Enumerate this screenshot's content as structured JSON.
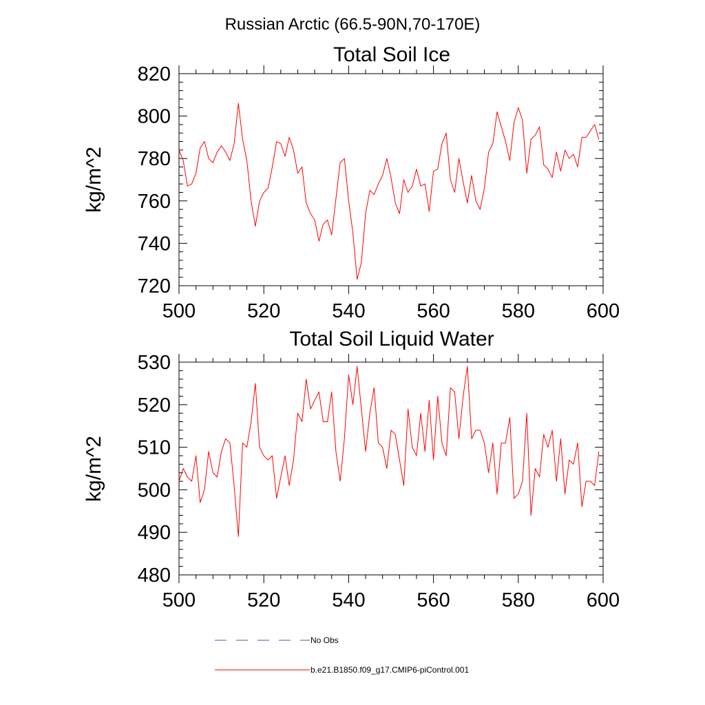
{
  "figure_title": "Russian Arctic (66.5-90N,70-170E)",
  "colors": {
    "model": "#ff0000",
    "obs": "#4a5a9a",
    "axis": "#000000"
  },
  "legend": {
    "entries": [
      {
        "label": "No Obs",
        "style": "dashed",
        "color": "#4a5a9a"
      },
      {
        "label": "b.e21.B1850.f09_g17.CMIP6-piControl.001",
        "style": "solid",
        "color": "#ff0000"
      }
    ]
  },
  "chart_data": [
    {
      "type": "line",
      "title": "Total Soil Ice",
      "xlabel": "",
      "ylabel": "kg/m^2",
      "xlim": [
        500,
        600
      ],
      "ylim": [
        720,
        820
      ],
      "xticks": [
        500,
        520,
        540,
        560,
        580,
        600
      ],
      "yticks": [
        720,
        740,
        760,
        780,
        800,
        820
      ],
      "xtick_labels": [
        "500",
        "520",
        "540",
        "560",
        "580",
        "600"
      ],
      "ytick_labels": [
        "720",
        "740",
        "760",
        "780",
        "800",
        "820"
      ],
      "grid": false,
      "series": [
        {
          "name": "b.e21.B1850.f09_g17.CMIP6-piControl.001",
          "x_start": 500,
          "x_step": 1,
          "values": [
            784,
            779,
            767,
            768,
            773,
            785,
            788,
            780,
            778,
            783,
            786,
            783,
            779,
            787,
            806,
            789,
            779,
            760,
            748,
            760,
            764,
            766,
            776,
            788,
            787,
            781,
            790,
            784,
            773,
            776,
            759,
            754,
            751,
            741,
            749,
            751,
            744,
            761,
            778,
            780,
            760,
            745,
            723,
            731,
            754,
            765,
            763,
            768,
            772,
            780,
            771,
            759,
            754,
            770,
            764,
            767,
            775,
            767,
            768,
            755,
            774,
            775,
            787,
            792,
            770,
            764,
            780,
            769,
            759,
            772,
            760,
            756,
            766,
            783,
            787,
            802,
            795,
            788,
            779,
            797,
            804,
            798,
            773,
            789,
            791,
            795,
            777,
            775,
            771,
            783,
            774,
            784,
            780,
            782,
            776,
            790,
            790,
            793,
            796,
            789
          ]
        }
      ]
    },
    {
      "type": "line",
      "title": "Total Soil Liquid Water",
      "xlabel": "",
      "ylabel": "kg/m^2",
      "xlim": [
        500,
        600
      ],
      "ylim": [
        480,
        530
      ],
      "xticks": [
        500,
        520,
        540,
        560,
        580,
        600
      ],
      "yticks": [
        480,
        490,
        500,
        510,
        520,
        530
      ],
      "xtick_labels": [
        "500",
        "520",
        "540",
        "560",
        "580",
        "600"
      ],
      "ytick_labels": [
        "480",
        "490",
        "500",
        "510",
        "520",
        "530"
      ],
      "grid": false,
      "series": [
        {
          "name": "b.e21.B1850.f09_g17.CMIP6-piControl.001",
          "x_start": 500,
          "x_step": 1,
          "values": [
            502,
            505,
            503,
            502,
            508,
            497,
            500,
            509,
            504,
            503,
            509,
            512,
            511,
            501,
            489,
            511,
            510,
            516,
            525,
            510,
            508,
            507,
            508,
            498,
            503,
            508,
            501,
            507,
            518,
            516,
            526,
            519,
            521,
            523,
            516,
            516,
            523,
            509,
            502,
            512,
            527,
            520,
            529,
            519,
            509,
            518,
            524,
            511,
            510,
            505,
            514,
            513,
            507,
            501,
            519,
            510,
            508,
            518,
            509,
            521,
            507,
            522,
            511,
            508,
            524,
            523,
            512,
            522,
            529,
            512,
            514,
            514,
            511,
            504,
            511,
            499,
            511,
            511,
            517,
            498,
            499,
            502,
            518,
            494,
            505,
            503,
            513,
            510,
            514,
            502,
            512,
            499,
            507,
            506,
            511,
            496,
            502,
            502,
            501,
            509
          ]
        }
      ]
    }
  ]
}
